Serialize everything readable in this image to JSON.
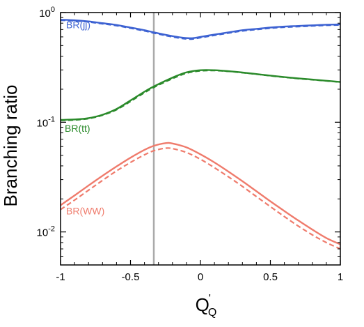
{
  "chart_data": {
    "type": "line",
    "xlabel": "Q",
    "xlabel_superscript": "'",
    "xlabel_subscript": "Q",
    "ylabel": "Branching ratio",
    "xlim": [
      -1,
      1
    ],
    "ylim": [
      0.005,
      1.0
    ],
    "yscale": "log",
    "grid": false,
    "x_ticks": [
      -1,
      -0.5,
      0,
      0.5,
      1
    ],
    "x_tick_labels": [
      "-1",
      "-0.5",
      "0",
      "0.5",
      "1"
    ],
    "y_ticks": [
      {
        "value": 1.0,
        "base": "10",
        "exp": "0"
      },
      {
        "value": 0.1,
        "base": "10",
        "exp": "-1"
      },
      {
        "value": 0.01,
        "base": "10",
        "exp": "-2"
      }
    ],
    "vertical_line": {
      "x": -0.3333,
      "color": "#aaaaaa"
    },
    "series": [
      {
        "name": "BR(jj)",
        "color": "#3d62d2",
        "label_at": {
          "x": -0.96,
          "y": 0.72
        },
        "x": [
          -1,
          -0.9,
          -0.8,
          -0.7,
          -0.6,
          -0.5,
          -0.4,
          -0.333,
          -0.2,
          -0.1,
          -0.05,
          0,
          0.1,
          0.2,
          0.3,
          0.4,
          0.5,
          0.6,
          0.7,
          0.8,
          0.9,
          1
        ],
        "solid": [
          0.86,
          0.85,
          0.83,
          0.8,
          0.77,
          0.73,
          0.69,
          0.66,
          0.61,
          0.585,
          0.585,
          0.6,
          0.63,
          0.66,
          0.69,
          0.71,
          0.73,
          0.745,
          0.755,
          0.765,
          0.775,
          0.78
        ],
        "dashed": [
          0.85,
          0.84,
          0.82,
          0.79,
          0.76,
          0.72,
          0.68,
          0.65,
          0.6,
          0.575,
          0.575,
          0.59,
          0.62,
          0.65,
          0.68,
          0.7,
          0.72,
          0.735,
          0.745,
          0.755,
          0.765,
          0.77
        ]
      },
      {
        "name": "BR(tt)",
        "color": "#2a8a2a",
        "label_at": {
          "x": -0.97,
          "y": 0.082
        },
        "x": [
          -1,
          -0.9,
          -0.8,
          -0.7,
          -0.6,
          -0.5,
          -0.4,
          -0.333,
          -0.2,
          -0.1,
          0,
          0.1,
          0.2,
          0.3,
          0.4,
          0.5,
          0.6,
          0.7,
          0.8,
          0.9,
          1
        ],
        "solid": [
          0.105,
          0.106,
          0.109,
          0.117,
          0.132,
          0.158,
          0.19,
          0.212,
          0.255,
          0.285,
          0.298,
          0.298,
          0.292,
          0.284,
          0.275,
          0.266,
          0.258,
          0.251,
          0.245,
          0.239,
          0.233
        ],
        "dashed": [
          0.104,
          0.105,
          0.108,
          0.116,
          0.13,
          0.155,
          0.186,
          0.208,
          0.25,
          0.28,
          0.294,
          0.296,
          0.291,
          0.283,
          0.274,
          0.265,
          0.257,
          0.25,
          0.244,
          0.238,
          0.232
        ]
      },
      {
        "name": "BR(WW)",
        "color": "#ef7b6c",
        "label_at": {
          "x": -0.96,
          "y": 0.0145
        },
        "x": [
          -1,
          -0.9,
          -0.8,
          -0.7,
          -0.6,
          -0.5,
          -0.4,
          -0.333,
          -0.25,
          -0.2,
          -0.1,
          0,
          0.1,
          0.2,
          0.3,
          0.4,
          0.5,
          0.6,
          0.7,
          0.8,
          0.9,
          1
        ],
        "solid": [
          0.0175,
          0.0215,
          0.0265,
          0.0325,
          0.0395,
          0.0475,
          0.056,
          0.061,
          0.0645,
          0.064,
          0.059,
          0.051,
          0.043,
          0.0355,
          0.029,
          0.0235,
          0.019,
          0.0155,
          0.0127,
          0.0105,
          0.0088,
          0.0077
        ],
        "dashed": [
          0.016,
          0.0195,
          0.024,
          0.0295,
          0.036,
          0.043,
          0.0505,
          0.055,
          0.058,
          0.0575,
          0.053,
          0.046,
          0.0385,
          0.0318,
          0.026,
          0.021,
          0.017,
          0.0138,
          0.0113,
          0.0094,
          0.008,
          0.007
        ]
      }
    ]
  }
}
